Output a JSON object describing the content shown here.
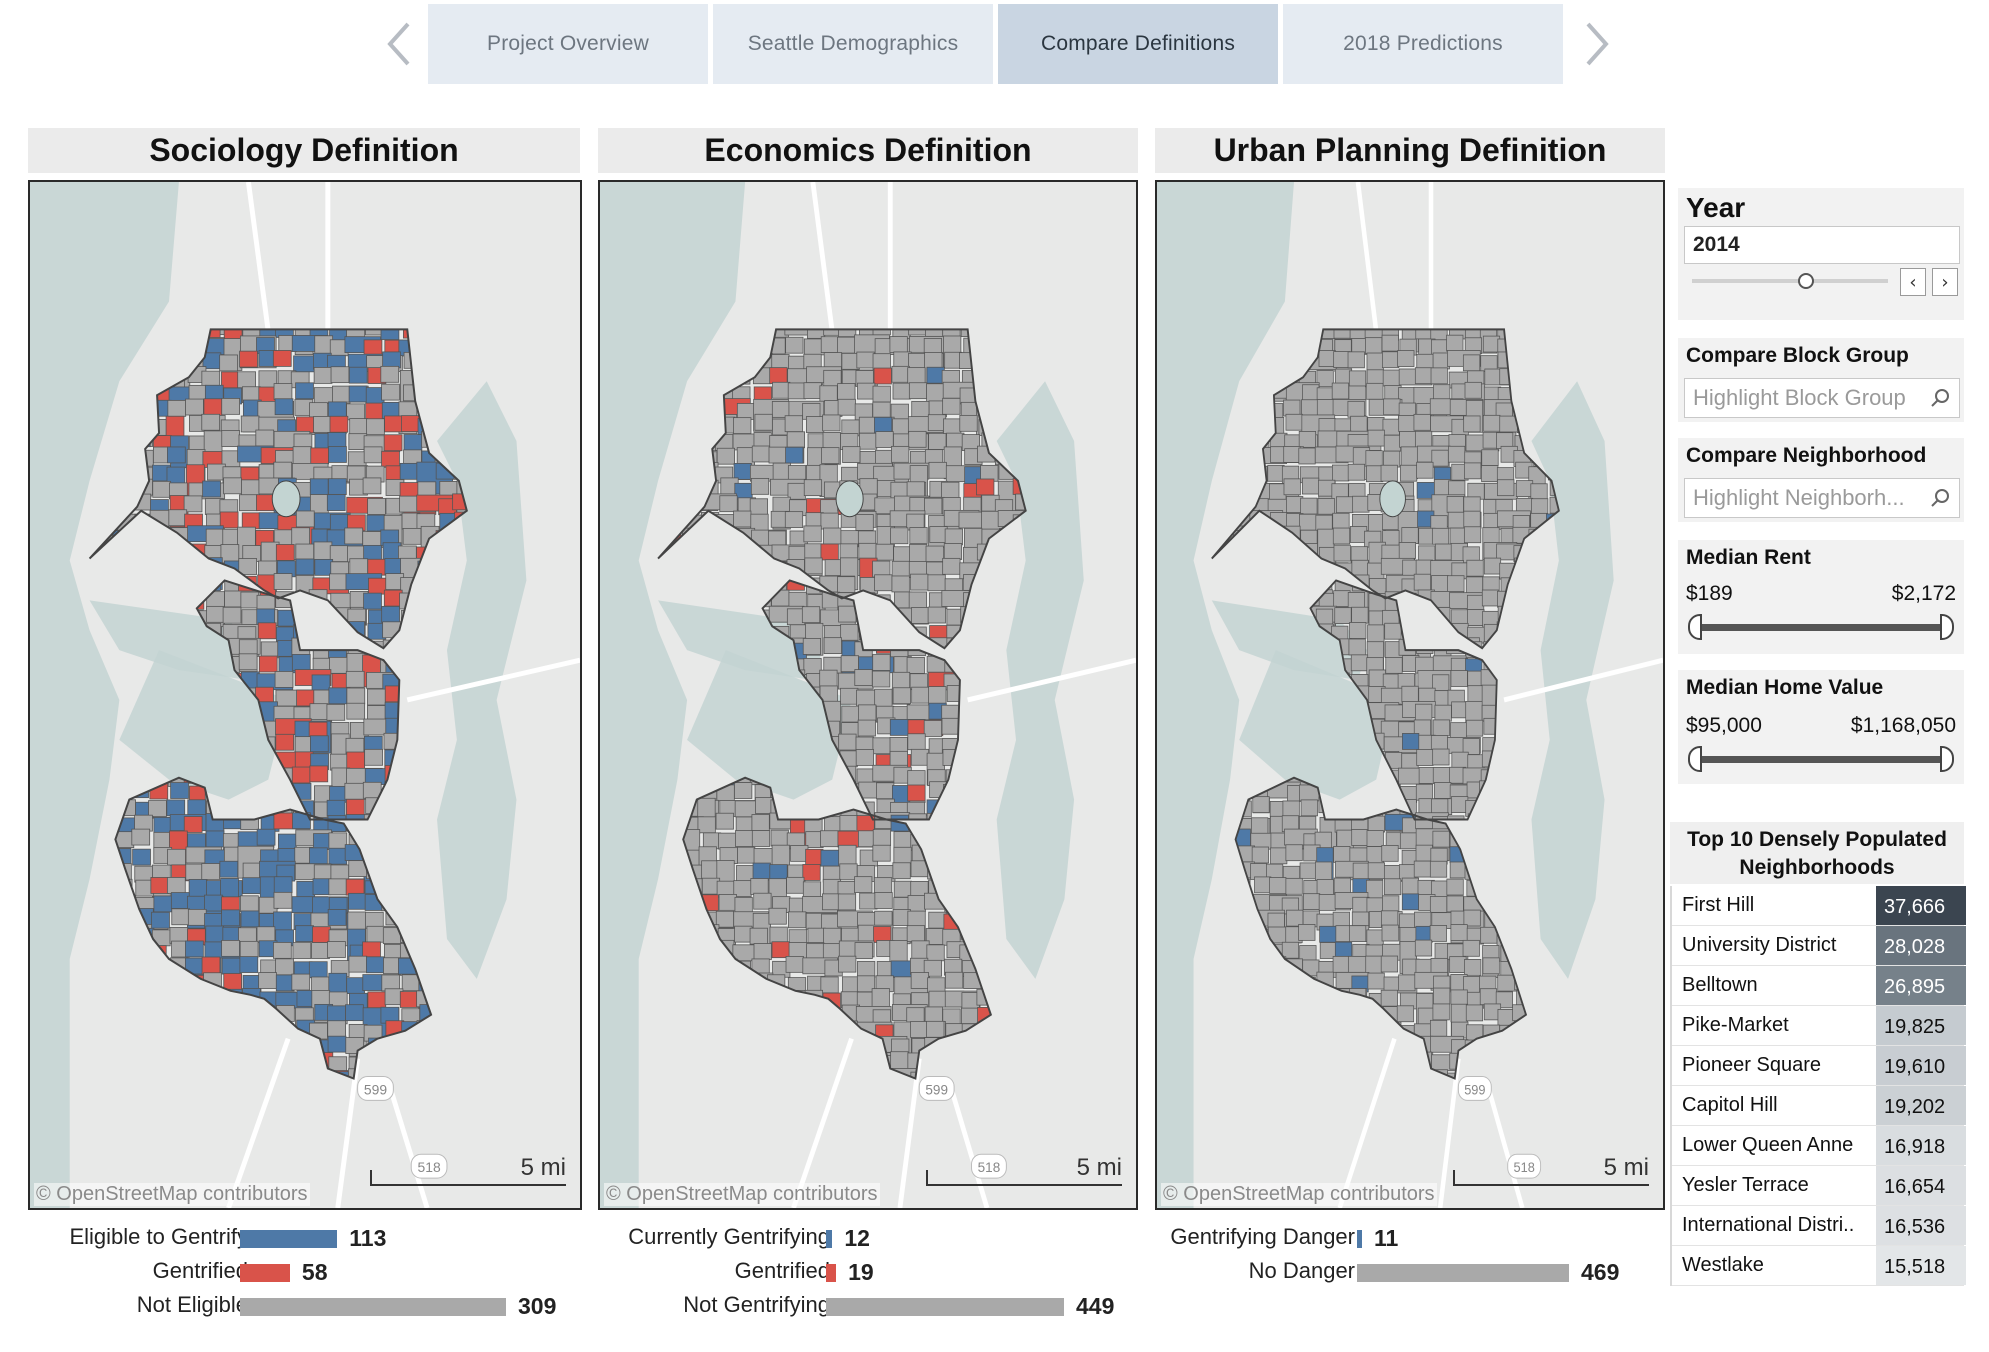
{
  "nav": {
    "tabs": [
      {
        "label": "Project Overview",
        "active": false
      },
      {
        "label": "Seattle Demographics",
        "active": false
      },
      {
        "label": "Compare Definitions",
        "active": true
      },
      {
        "label": "2018 Predictions",
        "active": false
      }
    ]
  },
  "colors": {
    "blue": "#4e79a7",
    "red": "#d9534a",
    "gray": "#a9a9a9",
    "water": "#c3d4d2",
    "land": "#e8e9e8"
  },
  "panels": [
    {
      "title": "Sociology Definition",
      "attribution": "© OpenStreetMap contributors",
      "scale": "5 mi",
      "highway_label_1": "599",
      "highway_label_2": "518",
      "legend": [
        {
          "label": "Eligible to Gentrify",
          "value": 113,
          "color": "blue"
        },
        {
          "label": "Gentrified",
          "value": 58,
          "color": "red"
        },
        {
          "label": "Not Eligible",
          "value": 309,
          "color": "gray"
        }
      ]
    },
    {
      "title": "Economics Definition",
      "attribution": "© OpenStreetMap contributors",
      "scale": "5 mi",
      "highway_label_1": "599",
      "highway_label_2": "518",
      "legend": [
        {
          "label": "Currently Gentrifying",
          "value": 12,
          "color": "blue"
        },
        {
          "label": "Gentrified",
          "value": 19,
          "color": "red"
        },
        {
          "label": "Not Gentrifying",
          "value": 449,
          "color": "gray"
        }
      ]
    },
    {
      "title": "Urban Planning Definition",
      "attribution": "© OpenStreetMap contributors",
      "scale": "5 mi",
      "highway_label_1": "599",
      "highway_label_2": "518",
      "legend": [
        {
          "label": "Gentrifying Danger",
          "value": 11,
          "color": "blue"
        },
        {
          "label": "No Danger",
          "value": 469,
          "color": "gray"
        }
      ]
    }
  ],
  "controls": {
    "year": {
      "title": "Year",
      "value": "2014",
      "slider_fraction": 0.58
    },
    "block_group": {
      "title": "Compare Block Group",
      "placeholder": "Highlight Block Group"
    },
    "neighborhood": {
      "title": "Compare Neighborhood",
      "placeholder": "Highlight Neighborh..."
    },
    "median_rent": {
      "title": "Median Rent",
      "min": "$189",
      "max": "$2,172"
    },
    "median_home_value": {
      "title": "Median Home Value",
      "min": "$95,000",
      "max": "$1,168,050"
    }
  },
  "top10": {
    "title_line1": "Top 10 Densely Populated",
    "title_line2": "Neighborhoods",
    "rows": [
      {
        "name": "First Hill",
        "value": "37,666",
        "shade": "#3b4550",
        "text": "#ffffff"
      },
      {
        "name": "University District",
        "value": "28,028",
        "shade": "#69747e",
        "text": "#ffffff"
      },
      {
        "name": "Belltown",
        "value": "26,895",
        "shade": "#76818a",
        "text": "#ffffff"
      },
      {
        "name": "Pike-Market",
        "value": "19,825",
        "shade": "#c5cbd0",
        "text": "#111111"
      },
      {
        "name": "Pioneer Square",
        "value": "19,610",
        "shade": "#c8cdd2",
        "text": "#111111"
      },
      {
        "name": "Capitol Hill",
        "value": "19,202",
        "shade": "#cbd0d4",
        "text": "#111111"
      },
      {
        "name": "Lower Queen Anne",
        "value": "16,918",
        "shade": "#d9dde0",
        "text": "#111111"
      },
      {
        "name": "Yesler Terrace",
        "value": "16,654",
        "shade": "#dcdfe2",
        "text": "#111111"
      },
      {
        "name": "International Distri..",
        "value": "16,536",
        "shade": "#dde0e3",
        "text": "#111111"
      },
      {
        "name": "Westlake",
        "value": "15,518",
        "shade": "#e3e6e8",
        "text": "#111111"
      }
    ]
  }
}
